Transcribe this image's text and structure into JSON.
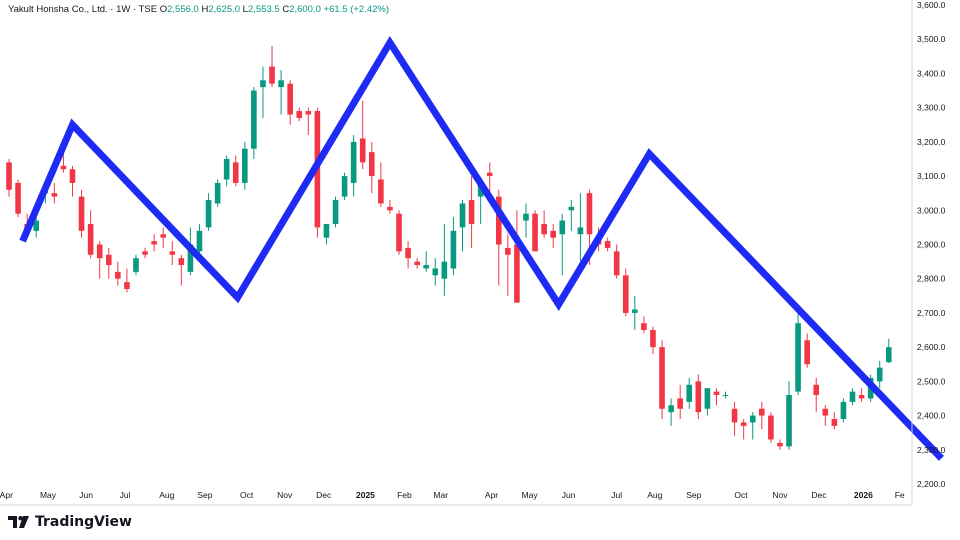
{
  "legend": {
    "symbol": "Yakult Honsha Co., Ltd. · 1W · TSE",
    "o_label": "O",
    "o": "2,556.0",
    "h_label": "H",
    "h": "2,625.0",
    "l_label": "L",
    "l": "2,553.5",
    "c_label": "C",
    "c": "2,600.0",
    "change": "+61.5 (+2.42%)"
  },
  "brand": {
    "name": "TradingView"
  },
  "colors": {
    "up": "#089981",
    "down": "#f23645",
    "zigzag": "#1e2bf5",
    "grid": "#e0e3eb"
  },
  "chart_data": {
    "type": "candlestick",
    "title": "Yakult Honsha Co., Ltd. · 1W · TSE",
    "ylim": [
      2200,
      3600
    ],
    "y_ticks": [
      2200,
      2300,
      2400,
      2500,
      2600,
      2700,
      2800,
      2900,
      3000,
      3100,
      3200,
      3300,
      3400,
      3500,
      3600
    ],
    "y_tick_labels": [
      "2,200.0",
      "2,300.0",
      "2,400.0",
      "2,500.0",
      "2,600.0",
      "2,700.0",
      "2,800.0",
      "2,900.0",
      "3,000.0",
      "3,100.0",
      "3,200.0",
      "3,300.0",
      "3,400.0",
      "3,500.0",
      "3,600.0"
    ],
    "x_labels": [
      {
        "w": -0.3,
        "label": "Apr",
        "bold": false
      },
      {
        "w": 4.3,
        "label": "May",
        "bold": false
      },
      {
        "w": 8.5,
        "label": "Jun",
        "bold": false
      },
      {
        "w": 12.8,
        "label": "Jul",
        "bold": false
      },
      {
        "w": 17.4,
        "label": "Aug",
        "bold": false
      },
      {
        "w": 21.6,
        "label": "Sep",
        "bold": false
      },
      {
        "w": 26.2,
        "label": "Oct",
        "bold": false
      },
      {
        "w": 30.4,
        "label": "Nov",
        "bold": false
      },
      {
        "w": 34.7,
        "label": "Dec",
        "bold": false
      },
      {
        "w": 39.3,
        "label": "2025",
        "bold": true
      },
      {
        "w": 43.6,
        "label": "Feb",
        "bold": false
      },
      {
        "w": 47.6,
        "label": "Mar",
        "bold": false
      },
      {
        "w": 53.2,
        "label": "Apr",
        "bold": false
      },
      {
        "w": 57.4,
        "label": "May",
        "bold": false
      },
      {
        "w": 61.7,
        "label": "Jun",
        "bold": false
      },
      {
        "w": 67.0,
        "label": "Jul",
        "bold": false
      },
      {
        "w": 71.2,
        "label": "Aug",
        "bold": false
      },
      {
        "w": 75.5,
        "label": "Sep",
        "bold": false
      },
      {
        "w": 80.7,
        "label": "Oct",
        "bold": false
      },
      {
        "w": 85.0,
        "label": "Nov",
        "bold": false
      },
      {
        "w": 89.3,
        "label": "Dec",
        "bold": false
      },
      {
        "w": 94.2,
        "label": "2026",
        "bold": true
      },
      {
        "w": 98.2,
        "label": "Fe",
        "bold": false
      }
    ],
    "candles": [
      [
        3140,
        3150,
        3040,
        3060
      ],
      [
        3080,
        3090,
        2980,
        2990
      ],
      [
        2960,
        2990,
        2930,
        2940
      ],
      [
        2940,
        2980,
        2920,
        2970
      ],
      [
        3050,
        3060,
        3020,
        3055
      ],
      [
        3050,
        3080,
        3020,
        3040
      ],
      [
        3130,
        3200,
        3110,
        3120
      ],
      [
        3120,
        3130,
        3040,
        3080
      ],
      [
        3040,
        3060,
        2920,
        2940
      ],
      [
        2960,
        3000,
        2860,
        2870
      ],
      [
        2900,
        2910,
        2800,
        2860
      ],
      [
        2870,
        2890,
        2800,
        2840
      ],
      [
        2820,
        2850,
        2780,
        2800
      ],
      [
        2790,
        2830,
        2760,
        2770
      ],
      [
        2820,
        2870,
        2810,
        2860
      ],
      [
        2880,
        2890,
        2860,
        2870
      ],
      [
        2910,
        2930,
        2880,
        2900
      ],
      [
        2930,
        2950,
        2890,
        2920
      ],
      [
        2880,
        2910,
        2840,
        2870
      ],
      [
        2860,
        2870,
        2780,
        2840
      ],
      [
        2820,
        2950,
        2810,
        2900
      ],
      [
        2880,
        2960,
        2870,
        2940
      ],
      [
        2950,
        3050,
        2940,
        3030
      ],
      [
        3020,
        3090,
        3010,
        3080
      ],
      [
        3090,
        3160,
        3070,
        3150
      ],
      [
        3140,
        3160,
        3070,
        3080
      ],
      [
        3080,
        3200,
        3060,
        3180
      ],
      [
        3180,
        3360,
        3150,
        3350
      ],
      [
        3360,
        3420,
        3270,
        3380
      ],
      [
        3420,
        3480,
        3360,
        3370
      ],
      [
        3360,
        3410,
        3280,
        3380
      ],
      [
        3370,
        3380,
        3250,
        3280
      ],
      [
        3290,
        3300,
        3260,
        3270
      ],
      [
        3290,
        3300,
        3220,
        3280
      ],
      [
        3290,
        3300,
        2920,
        2950
      ],
      [
        2920,
        2950,
        2900,
        2960
      ],
      [
        2960,
        3040,
        2950,
        3030
      ],
      [
        3040,
        3110,
        3030,
        3100
      ],
      [
        3080,
        3220,
        3040,
        3200
      ],
      [
        3210,
        3320,
        3120,
        3140
      ],
      [
        3170,
        3200,
        3050,
        3100
      ],
      [
        3090,
        3140,
        3010,
        3020
      ],
      [
        3010,
        3030,
        2990,
        3000
      ],
      [
        2990,
        3000,
        2870,
        2880
      ],
      [
        2890,
        2910,
        2830,
        2860
      ],
      [
        2850,
        2860,
        2830,
        2840
      ],
      [
        2830,
        2880,
        2820,
        2840
      ],
      [
        2810,
        2860,
        2780,
        2830
      ],
      [
        2800,
        2960,
        2750,
        2850
      ],
      [
        2830,
        2980,
        2810,
        2940
      ],
      [
        2950,
        3030,
        2880,
        3020
      ],
      [
        3030,
        3100,
        2890,
        2960
      ],
      [
        3040,
        3090,
        2960,
        3080
      ],
      [
        3110,
        3140,
        3050,
        3100
      ],
      [
        3040,
        3060,
        2780,
        2900
      ],
      [
        2890,
        2930,
        2750,
        2870
      ],
      [
        2900,
        3000,
        2730,
        2730
      ],
      [
        2970,
        3020,
        2920,
        2990
      ],
      [
        2990,
        3000,
        2880,
        2880
      ],
      [
        2960,
        3000,
        2920,
        2930
      ],
      [
        2940,
        2960,
        2890,
        2920
      ],
      [
        2930,
        2990,
        2810,
        2970
      ],
      [
        3000,
        3030,
        2940,
        3010
      ],
      [
        2930,
        3050,
        2850,
        2950
      ],
      [
        3050,
        3060,
        2840,
        2930
      ],
      [
        2920,
        2950,
        2880,
        2900
      ],
      [
        2910,
        2920,
        2880,
        2890
      ],
      [
        2880,
        2900,
        2800,
        2810
      ],
      [
        2810,
        2830,
        2690,
        2700
      ],
      [
        2700,
        2750,
        2650,
        2710
      ],
      [
        2670,
        2690,
        2640,
        2650
      ],
      [
        2650,
        2660,
        2580,
        2600
      ],
      [
        2600,
        2620,
        2390,
        2420
      ],
      [
        2410,
        2450,
        2370,
        2430
      ],
      [
        2450,
        2490,
        2390,
        2420
      ],
      [
        2440,
        2510,
        2420,
        2490
      ],
      [
        2500,
        2520,
        2390,
        2410
      ],
      [
        2420,
        2480,
        2400,
        2480
      ],
      [
        2470,
        2480,
        2430,
        2460
      ],
      [
        2460,
        2470,
        2450,
        2460
      ],
      [
        2420,
        2440,
        2340,
        2380
      ],
      [
        2380,
        2390,
        2330,
        2370
      ],
      [
        2380,
        2410,
        2330,
        2400
      ],
      [
        2420,
        2440,
        2360,
        2400
      ],
      [
        2400,
        2410,
        2320,
        2330
      ],
      [
        2320,
        2330,
        2300,
        2310
      ],
      [
        2310,
        2500,
        2300,
        2460
      ],
      [
        2470,
        2720,
        2460,
        2670
      ],
      [
        2620,
        2640,
        2540,
        2550
      ],
      [
        2490,
        2510,
        2410,
        2460
      ],
      [
        2420,
        2430,
        2370,
        2400
      ],
      [
        2390,
        2410,
        2360,
        2370
      ],
      [
        2390,
        2450,
        2380,
        2440
      ],
      [
        2440,
        2480,
        2430,
        2470
      ],
      [
        2460,
        2480,
        2440,
        2450
      ],
      [
        2450,
        2520,
        2440,
        2510
      ],
      [
        2500,
        2560,
        2480,
        2540
      ],
      [
        2556,
        2625,
        2553.5,
        2600
      ]
    ],
    "zigzag": [
      [
        -2,
        2910
      ],
      [
        3.5,
        3250
      ],
      [
        12.6,
        2745
      ],
      [
        21,
        3490
      ],
      [
        30.3,
        2725
      ],
      [
        35.3,
        3165
      ],
      [
        51.4,
        2275
      ]
    ]
  }
}
